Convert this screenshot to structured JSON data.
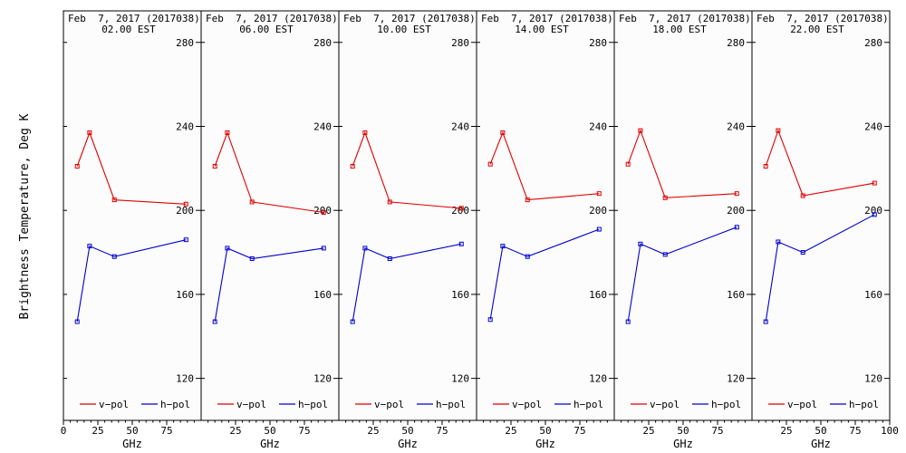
{
  "ylabel": "Brightness Temperature, Deg K",
  "xlabel": "GHz",
  "legend": {
    "vpol": "v−pol",
    "hpol": "h−pol"
  },
  "colors": {
    "vpol": "#e00000",
    "hpol": "#0000d0",
    "panel_bg": "#fcfcfc",
    "axis": "#000000"
  },
  "chart_data": [
    {
      "type": "line",
      "title_line1": "Feb  7, 2017 (2017038)",
      "title_line2": "02.00 EST",
      "x": [
        10,
        19,
        37,
        89
      ],
      "series": [
        {
          "name": "v−pol",
          "values": [
            221,
            237,
            205,
            203
          ]
        },
        {
          "name": "h−pol",
          "values": [
            147,
            183,
            178,
            186
          ]
        }
      ],
      "xlim": [
        0,
        100
      ],
      "ylim": [
        100,
        295
      ],
      "xticks": [
        "0",
        "25",
        "50",
        "75"
      ],
      "yticks": [
        "120",
        "160",
        "200",
        "240",
        "280"
      ]
    },
    {
      "type": "line",
      "title_line1": "Feb  7, 2017 (2017038)",
      "title_line2": "06.00 EST",
      "x": [
        10,
        19,
        37,
        89
      ],
      "series": [
        {
          "name": "v−pol",
          "values": [
            221,
            237,
            204,
            199
          ]
        },
        {
          "name": "h−pol",
          "values": [
            147,
            182,
            177,
            182
          ]
        }
      ],
      "xlim": [
        0,
        100
      ],
      "ylim": [
        100,
        295
      ],
      "xticks": [
        "25",
        "50",
        "75"
      ],
      "yticks": [
        "120",
        "160",
        "200",
        "240",
        "280"
      ]
    },
    {
      "type": "line",
      "title_line1": "Feb  7, 2017 (2017038)",
      "title_line2": "10.00 EST",
      "x": [
        10,
        19,
        37,
        89
      ],
      "series": [
        {
          "name": "v−pol",
          "values": [
            221,
            237,
            204,
            201
          ]
        },
        {
          "name": "h−pol",
          "values": [
            147,
            182,
            177,
            184
          ]
        }
      ],
      "xlim": [
        0,
        100
      ],
      "ylim": [
        100,
        295
      ],
      "xticks": [
        "25",
        "50",
        "75"
      ],
      "yticks": [
        "120",
        "160",
        "200",
        "240",
        "280"
      ]
    },
    {
      "type": "line",
      "title_line1": "Feb  7, 2017 (2017038)",
      "title_line2": "14.00 EST",
      "x": [
        10,
        19,
        37,
        89
      ],
      "series": [
        {
          "name": "v−pol",
          "values": [
            222,
            237,
            205,
            208
          ]
        },
        {
          "name": "h−pol",
          "values": [
            148,
            183,
            178,
            191
          ]
        }
      ],
      "xlim": [
        0,
        100
      ],
      "ylim": [
        100,
        295
      ],
      "xticks": [
        "25",
        "50",
        "75"
      ],
      "yticks": [
        "120",
        "160",
        "200",
        "240",
        "280"
      ]
    },
    {
      "type": "line",
      "title_line1": "Feb  7, 2017 (2017038)",
      "title_line2": "18.00 EST",
      "x": [
        10,
        19,
        37,
        89
      ],
      "series": [
        {
          "name": "v−pol",
          "values": [
            222,
            238,
            206,
            208
          ]
        },
        {
          "name": "h−pol",
          "values": [
            147,
            184,
            179,
            192
          ]
        }
      ],
      "xlim": [
        0,
        100
      ],
      "ylim": [
        100,
        295
      ],
      "xticks": [
        "25",
        "50",
        "75"
      ],
      "yticks": [
        "120",
        "160",
        "200",
        "240",
        "280"
      ]
    },
    {
      "type": "line",
      "title_line1": "Feb  7, 2017 (2017038)",
      "title_line2": "22.00 EST",
      "x": [
        10,
        19,
        37,
        89
      ],
      "series": [
        {
          "name": "v−pol",
          "values": [
            221,
            238,
            207,
            213
          ]
        },
        {
          "name": "h−pol",
          "values": [
            147,
            185,
            180,
            198
          ]
        }
      ],
      "xlim": [
        0,
        100
      ],
      "ylim": [
        100,
        295
      ],
      "xticks": [
        "25",
        "50",
        "75",
        "100"
      ],
      "yticks": [
        "120",
        "160",
        "200",
        "240",
        "280"
      ]
    }
  ]
}
